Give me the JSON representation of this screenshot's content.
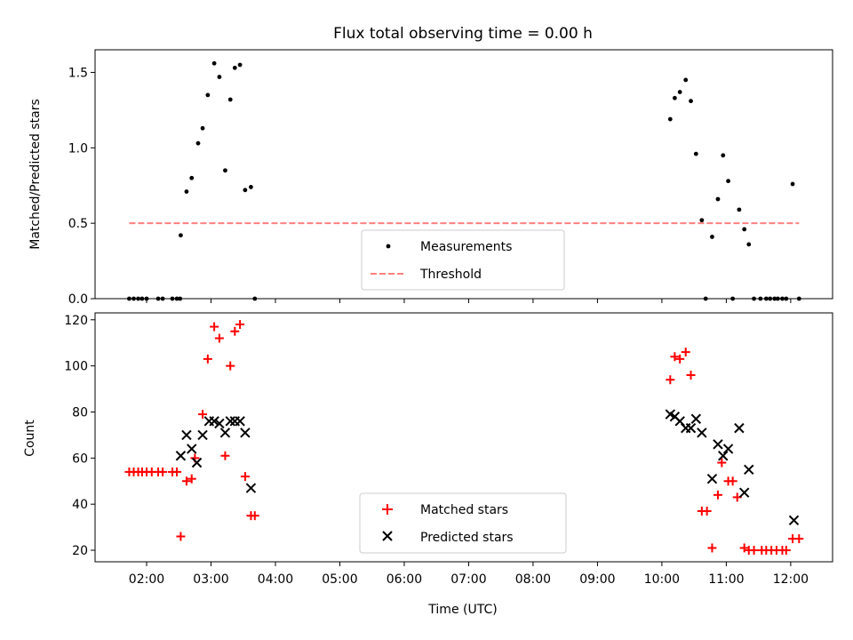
{
  "chart_data": {
    "title": "Flux total observing time = 0.00 h",
    "xlabel": "Time (UTC)",
    "x_ticks": [
      "02:00",
      "03:00",
      "04:00",
      "05:00",
      "06:00",
      "07:00",
      "08:00",
      "09:00",
      "10:00",
      "11:00",
      "12:00"
    ],
    "xlim_hours": [
      1.2,
      12.65
    ],
    "panels": [
      {
        "type": "scatter",
        "ylabel": "Matched/Predicted stars",
        "ylim": [
          0,
          1.65
        ],
        "y_ticks": [
          "0.0",
          "0.5",
          "1.0",
          "1.5"
        ],
        "y_tick_values": [
          0,
          0.5,
          1.0,
          1.5
        ],
        "legend_position": "lower center",
        "series": [
          {
            "name": "Measurements",
            "marker": "dot",
            "color": "#000000",
            "x": [
              1.73,
              1.8,
              1.87,
              1.93,
              2.0,
              2.18,
              2.25,
              2.4,
              2.47,
              2.52,
              2.53,
              2.62,
              2.7,
              2.8,
              2.87,
              2.95,
              3.05,
              3.13,
              3.22,
              3.3,
              3.37,
              3.45,
              3.53,
              3.62,
              3.68,
              10.13,
              10.2,
              10.28,
              10.37,
              10.45,
              10.53,
              10.62,
              10.68,
              10.78,
              10.87,
              10.95,
              11.03,
              11.1,
              11.2,
              11.28,
              11.35,
              11.43,
              11.53,
              11.62,
              11.68,
              11.75,
              11.8,
              11.87,
              11.93,
              12.03,
              12.13
            ],
            "y": [
              0,
              0,
              0,
              0,
              0,
              0,
              0,
              0,
              0,
              0,
              0.42,
              0.71,
              0.8,
              1.03,
              1.13,
              1.35,
              1.56,
              1.47,
              0.85,
              1.32,
              1.53,
              1.55,
              0.72,
              0.74,
              0,
              1.19,
              1.33,
              1.37,
              1.45,
              1.31,
              0.96,
              0.52,
              0,
              0.41,
              0.66,
              0.95,
              0.78,
              0,
              0.59,
              0.46,
              0.36,
              0,
              0,
              0,
              0,
              0,
              0,
              0,
              0,
              0.76,
              0
            ]
          },
          {
            "name": "Threshold",
            "type": "line",
            "style": "dashed",
            "color": "#ff7f7f",
            "x": [
              1.73,
              12.13
            ],
            "y": [
              0.5,
              0.5
            ]
          }
        ]
      },
      {
        "type": "scatter",
        "ylabel": "Count",
        "ylim": [
          15,
          123
        ],
        "y_ticks": [
          "20",
          "40",
          "60",
          "80",
          "100",
          "120"
        ],
        "y_tick_values": [
          20,
          40,
          60,
          80,
          100,
          120
        ],
        "legend_position": "lower center",
        "series": [
          {
            "name": "Matched stars",
            "marker": "plus",
            "color": "#ff0000",
            "x": [
              1.73,
              1.8,
              1.87,
              1.93,
              2.0,
              2.08,
              2.18,
              2.25,
              2.4,
              2.47,
              2.53,
              2.62,
              2.7,
              2.75,
              2.87,
              2.95,
              3.05,
              3.13,
              3.22,
              3.3,
              3.37,
              3.45,
              3.53,
              3.62,
              3.68,
              10.13,
              10.2,
              10.28,
              10.37,
              10.45,
              10.62,
              10.7,
              10.78,
              10.87,
              10.93,
              11.03,
              11.1,
              11.17,
              11.28,
              11.35,
              11.43,
              11.55,
              11.62,
              11.7,
              11.78,
              11.87,
              11.93,
              12.03,
              12.13
            ],
            "y": [
              54,
              54,
              54,
              54,
              54,
              54,
              54,
              54,
              54,
              54,
              26,
              50,
              51,
              60,
              79,
              103,
              117,
              112,
              61,
              100,
              115,
              118,
              52,
              35,
              35,
              94,
              104,
              103,
              106,
              96,
              37,
              37,
              21,
              44,
              58,
              50,
              50,
              43,
              21,
              20,
              20,
              20,
              20,
              20,
              20,
              20,
              20,
              25,
              25
            ]
          },
          {
            "name": "Predicted stars",
            "marker": "x",
            "color": "#000000",
            "x": [
              2.53,
              2.62,
              2.7,
              2.78,
              2.87,
              2.97,
              3.05,
              3.13,
              3.22,
              3.3,
              3.37,
              3.45,
              3.53,
              3.62,
              10.13,
              10.2,
              10.28,
              10.37,
              10.45,
              10.53,
              10.62,
              10.78,
              10.87,
              10.95,
              11.03,
              11.2,
              11.28,
              11.35,
              12.05
            ],
            "y": [
              61,
              70,
              64,
              58,
              70,
              76,
              76,
              75,
              71,
              76,
              76,
              76,
              71,
              47,
              79,
              78,
              76,
              73,
              73,
              77,
              71,
              51,
              66,
              61,
              64,
              73,
              45,
              55,
              33
            ]
          }
        ]
      }
    ]
  }
}
